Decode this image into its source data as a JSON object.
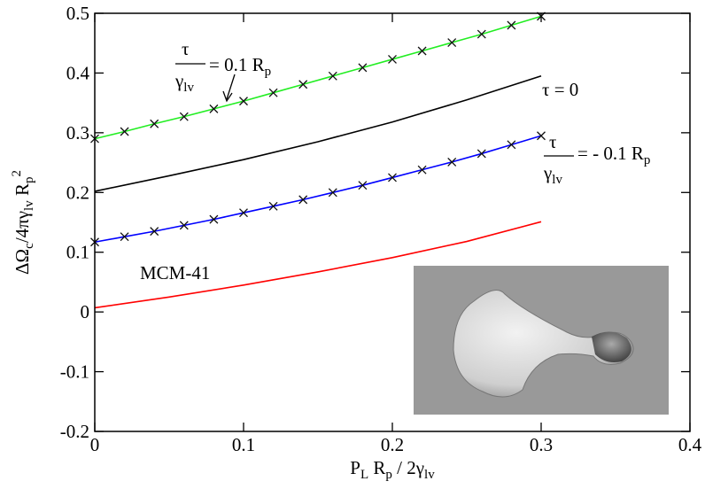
{
  "chart_data": {
    "type": "line",
    "xlim": [
      0,
      0.4
    ],
    "xticks": [
      0,
      0.1,
      0.2,
      0.3,
      0.4
    ],
    "ylim": [
      -0.2,
      0.5
    ],
    "yticks": [
      -0.2,
      -0.1,
      0,
      0.1,
      0.2,
      0.3,
      0.4,
      0.5
    ],
    "x_label": [
      {
        "text": "P"
      },
      {
        "text": "L",
        "style": "sub"
      },
      {
        "text": " R"
      },
      {
        "text": "p",
        "style": "sub"
      },
      {
        "text": " / 2γ"
      },
      {
        "text": "lv",
        "style": "sub"
      }
    ],
    "y_label": [
      {
        "text": "ΔΩ"
      },
      {
        "text": "c",
        "style": "sub"
      },
      {
        "text": "/4πγ"
      },
      {
        "text": "lv",
        "style": "sub"
      },
      {
        "text": " R"
      },
      {
        "text": "p",
        "style": "sub"
      },
      {
        "text": "2",
        "style": "sup"
      }
    ],
    "annotations": [
      {
        "numerator": "τ",
        "denominator": "γ",
        "denominator_sub": "lv",
        "text": "= 0.1 R",
        "sub": "p"
      },
      {
        "text": "τ = 0"
      },
      {
        "numerator": "τ",
        "denominator": "γ",
        "denominator_sub": "lv",
        "text": "= - 0.1 R",
        "sub": "p"
      },
      {
        "text": "MCM-41"
      }
    ],
    "series": [
      {
        "color": "#22ee22",
        "marker": "x",
        "x": [
          0,
          0.02,
          0.04,
          0.06,
          0.08,
          0.1,
          0.12,
          0.14,
          0.16,
          0.18,
          0.2,
          0.22,
          0.24,
          0.26,
          0.28,
          0.3
        ],
        "values": [
          0.29,
          0.302,
          0.315,
          0.327,
          0.34,
          0.353,
          0.367,
          0.381,
          0.395,
          0.409,
          0.423,
          0.437,
          0.451,
          0.465,
          0.48,
          0.495
        ]
      },
      {
        "color": "#000000",
        "x": [
          0,
          0.05,
          0.1,
          0.15,
          0.2,
          0.25,
          0.3
        ],
        "values": [
          0.202,
          0.228,
          0.255,
          0.285,
          0.318,
          0.355,
          0.395
        ]
      },
      {
        "color": "#0000ff",
        "marker": "x",
        "x": [
          0,
          0.02,
          0.04,
          0.06,
          0.08,
          0.1,
          0.12,
          0.14,
          0.16,
          0.18,
          0.2,
          0.22,
          0.24,
          0.26,
          0.28,
          0.3
        ],
        "values": [
          0.117,
          0.126,
          0.135,
          0.145,
          0.155,
          0.166,
          0.177,
          0.188,
          0.2,
          0.212,
          0.225,
          0.238,
          0.251,
          0.265,
          0.28,
          0.295
        ]
      },
      {
        "color": "#ff0000",
        "x": [
          0,
          0.05,
          0.1,
          0.15,
          0.2,
          0.25,
          0.3
        ],
        "values": [
          0.007,
          0.025,
          0.045,
          0.067,
          0.091,
          0.118,
          0.151
        ]
      }
    ]
  }
}
